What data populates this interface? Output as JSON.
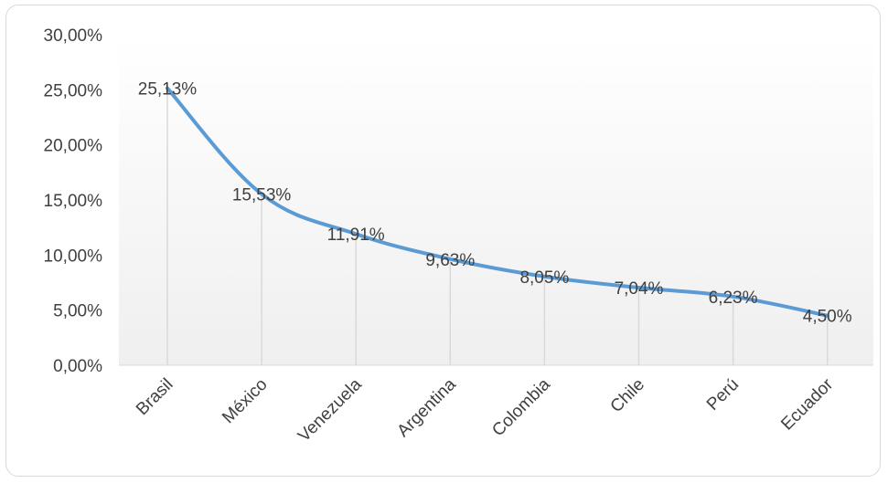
{
  "chart_data": {
    "type": "line",
    "categories": [
      "Brasil",
      "México",
      "Venezuela",
      "Argentina",
      "Colombia",
      "Chile",
      "Perú",
      "Ecuador"
    ],
    "values": [
      25.13,
      15.53,
      11.91,
      9.63,
      8.05,
      7.04,
      6.23,
      4.5
    ],
    "data_labels": [
      "25,13%",
      "15,53%",
      "11,91%",
      "9,63%",
      "8,05%",
      "7,04%",
      "6,23%",
      "4,50%"
    ],
    "y_ticks": [
      0,
      5,
      10,
      15,
      20,
      25,
      30
    ],
    "y_tick_labels": [
      "0,00%",
      "5,00%",
      "10,00%",
      "15,00%",
      "20,00%",
      "25,00%",
      "30,00%"
    ],
    "ylim": [
      0,
      30
    ],
    "title": "",
    "xlabel": "",
    "ylabel": "",
    "grid": false,
    "drop_lines": true,
    "smooth": true,
    "line_color": "#5b9bd5",
    "drop_line_color": "#d9d9d9",
    "plot_background": "gradient white to light gray"
  }
}
